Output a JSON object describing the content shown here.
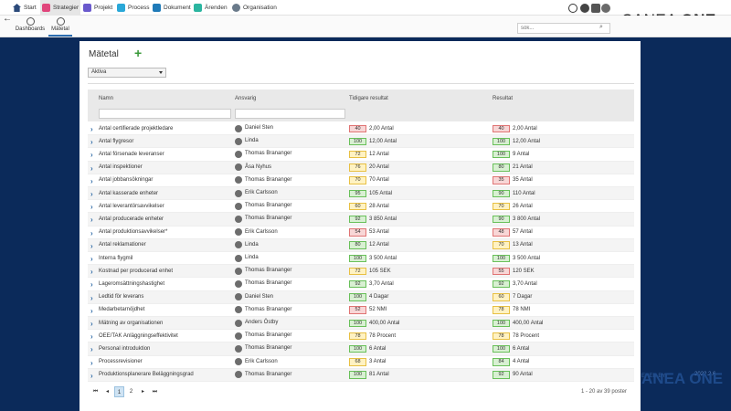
{
  "nav": {
    "items": [
      {
        "label": "Start",
        "icon": "home-icon",
        "color": "#2b4a7a"
      },
      {
        "label": "Strategier",
        "icon": "strategy-icon",
        "color": "#e0457b"
      },
      {
        "label": "Projekt",
        "icon": "project-icon",
        "color": "#6a5acd"
      },
      {
        "label": "Process",
        "icon": "process-icon",
        "color": "#2aa8d8"
      },
      {
        "label": "Dokument",
        "icon": "document-icon",
        "color": "#1f7ab8"
      },
      {
        "label": "Ärenden",
        "icon": "case-icon",
        "color": "#2bb5a0"
      },
      {
        "label": "Organisation",
        "icon": "organisation-icon",
        "color": "#6a7a8a"
      }
    ]
  },
  "brand": {
    "logo_light": "CANEA ",
    "logo_bold": "ONE"
  },
  "subnav": {
    "items": [
      {
        "label": "Dashboards"
      },
      {
        "label": "Mätetal"
      }
    ]
  },
  "search": {
    "placeholder": "sök..."
  },
  "page": {
    "title": "Mätetal",
    "filter_value": "Aktiva"
  },
  "table": {
    "columns": [
      "Namn",
      "Ansvarig",
      "Tidigare resultat",
      "Resultat"
    ],
    "rows": [
      {
        "name": "Antal certifierade projektledare",
        "owner": "Daniel Sten",
        "prev_pct": "40",
        "prev_color": "red",
        "prev": "2,00 Antal",
        "cur_pct": "40",
        "cur_color": "red",
        "cur": "2,00 Antal"
      },
      {
        "name": "Antal flygresor",
        "owner": "Linda",
        "prev_pct": "100",
        "prev_color": "green",
        "prev": "12,00 Antal",
        "cur_pct": "100",
        "cur_color": "green",
        "cur": "12,00 Antal"
      },
      {
        "name": "Antal försenade leveranser",
        "owner": "Thomas Brananger",
        "prev_pct": "72",
        "prev_color": "yellow",
        "prev": "12 Antal",
        "cur_pct": "100",
        "cur_color": "green",
        "cur": "9 Antal"
      },
      {
        "name": "Antal inspektioner",
        "owner": "Åsa Nyhus",
        "prev_pct": "76",
        "prev_color": "yellow",
        "prev": "20 Antal",
        "cur_pct": "80",
        "cur_color": "green",
        "cur": "21 Antal"
      },
      {
        "name": "Antal jobbansökningar",
        "owner": "Thomas Brananger",
        "prev_pct": "70",
        "prev_color": "yellow",
        "prev": "70 Antal",
        "cur_pct": "35",
        "cur_color": "red",
        "cur": "35 Antal"
      },
      {
        "name": "Antal kasserade enheter",
        "owner": "Erik Carlsson",
        "prev_pct": "95",
        "prev_color": "green",
        "prev": "105 Antal",
        "cur_pct": "90",
        "cur_color": "green",
        "cur": "110 Antal"
      },
      {
        "name": "Antal leverantörsavvikelser",
        "owner": "Thomas Brananger",
        "prev_pct": "60",
        "prev_color": "yellow",
        "prev": "28 Antal",
        "cur_pct": "70",
        "cur_color": "yellow",
        "cur": "26 Antal"
      },
      {
        "name": "Antal producerade enheter",
        "owner": "Thomas Brananger",
        "prev_pct": "92",
        "prev_color": "green",
        "prev": "3 850 Antal",
        "cur_pct": "90",
        "cur_color": "green",
        "cur": "3 800 Antal"
      },
      {
        "name": "Antal produktionsavvikelser*",
        "owner": "Erik Carlsson",
        "prev_pct": "54",
        "prev_color": "red",
        "prev": "53 Antal",
        "cur_pct": "48",
        "cur_color": "red",
        "cur": "57 Antal"
      },
      {
        "name": "Antal reklamationer",
        "owner": "Linda",
        "prev_pct": "80",
        "prev_color": "green",
        "prev": "12 Antal",
        "cur_pct": "70",
        "cur_color": "yellow",
        "cur": "13 Antal"
      },
      {
        "name": "Interna flygmil",
        "owner": "Linda",
        "prev_pct": "100",
        "prev_color": "green",
        "prev": "3 500 Antal",
        "cur_pct": "100",
        "cur_color": "green",
        "cur": "3 500 Antal"
      },
      {
        "name": "Kostnad per producerad enhet",
        "owner": "Thomas Brananger",
        "prev_pct": "72",
        "prev_color": "yellow",
        "prev": "105 SEK",
        "cur_pct": "55",
        "cur_color": "red",
        "cur": "120 SEK"
      },
      {
        "name": "Lageromsättningshastighet",
        "owner": "Thomas Brananger",
        "prev_pct": "92",
        "prev_color": "green",
        "prev": "3,70 Antal",
        "cur_pct": "92",
        "cur_color": "green",
        "cur": "3,70 Antal"
      },
      {
        "name": "Ledtid för leverans",
        "owner": "Daniel Sten",
        "prev_pct": "100",
        "prev_color": "green",
        "prev": "4 Dagar",
        "cur_pct": "60",
        "cur_color": "yellow",
        "cur": "7 Dagar"
      },
      {
        "name": "Medarbetarnöjdhet",
        "owner": "Thomas Brananger",
        "prev_pct": "52",
        "prev_color": "red",
        "prev": "52 NMI",
        "cur_pct": "78",
        "cur_color": "yellow",
        "cur": "78 NMI"
      },
      {
        "name": "Mätning av organisationen",
        "owner": "Anders Östby",
        "prev_pct": "100",
        "prev_color": "green",
        "prev": "400,00 Antal",
        "cur_pct": "100",
        "cur_color": "green",
        "cur": "400,00 Antal"
      },
      {
        "name": "OEE/TAK Anläggningseffektivitet",
        "owner": "Thomas Brananger",
        "prev_pct": "78",
        "prev_color": "yellow",
        "prev": "78 Procent",
        "cur_pct": "78",
        "cur_color": "yellow",
        "cur": "78 Procent"
      },
      {
        "name": "Personal introduktion",
        "owner": "Thomas Brananger",
        "prev_pct": "100",
        "prev_color": "green",
        "prev": "6 Antal",
        "cur_pct": "100",
        "cur_color": "green",
        "cur": "6 Antal"
      },
      {
        "name": "Processrevisioner",
        "owner": "Erik Carlsson",
        "prev_pct": "68",
        "prev_color": "yellow",
        "prev": "3 Antal",
        "cur_pct": "84",
        "cur_color": "green",
        "cur": "4 Antal"
      },
      {
        "name": "Produktionsplanerare Beläggningsgrad",
        "owner": "Thomas Brananger",
        "prev_pct": "100",
        "prev_color": "green",
        "prev": "81 Antal",
        "cur_pct": "92",
        "cur_color": "green",
        "cur": "90 Antal"
      }
    ]
  },
  "pager": {
    "first": "⏮",
    "prev": "◂",
    "pages": [
      "1",
      "2"
    ],
    "next": "▸",
    "last": "⏭",
    "info": "1 - 20 av 39 poster"
  },
  "footer": {
    "powered": "ERED BY",
    "version": "2022.2.6",
    "logo": "ANEA ONE"
  },
  "colors": {
    "green_bg": "#d8f0d2",
    "green_border": "#69c05a",
    "yellow_bg": "#fff2c2",
    "yellow_border": "#e8c043",
    "red_bg": "#f8d6d6",
    "red_border": "#e07474"
  }
}
